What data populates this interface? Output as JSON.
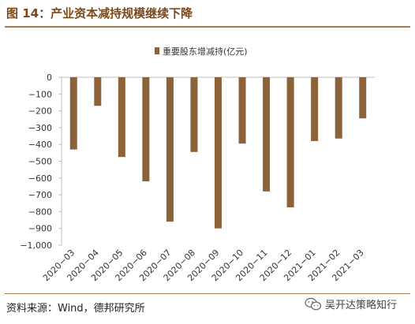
{
  "figure_title": "图 14：产业资本减持规模继续下降",
  "source_note": "资料来源：Wind，德邦研究所",
  "watermark": {
    "text": "吴开达策略知行",
    "icon": "wechat-icon"
  },
  "colors": {
    "bar": "#8c6239",
    "title": "#7a4a1c",
    "rule": "#a87e4c",
    "axis": "#bfbfbf",
    "text": "#333333"
  },
  "chart_data": {
    "type": "bar",
    "title": "",
    "xlabel": "",
    "ylabel": "",
    "ylim": [
      -1000,
      0
    ],
    "yticks": [
      0,
      -100,
      -200,
      -300,
      -400,
      -500,
      -600,
      -700,
      -800,
      -900,
      -1000
    ],
    "ytick_labels": [
      "0",
      "−100",
      "−200",
      "−300",
      "−400",
      "−500",
      "−600",
      "−700",
      "−800",
      "−900",
      "−1,000"
    ],
    "legend_position": "top-center",
    "categories": [
      "2020−03",
      "2020−04",
      "2020−05",
      "2020−06",
      "2020−07",
      "2020−08",
      "2020−09",
      "2020−10",
      "2020−11",
      "2020−12",
      "2021−01",
      "2021−02",
      "2021−03"
    ],
    "series": [
      {
        "name": "重要股东增减持(亿元)",
        "values": [
          -430,
          -170,
          -475,
          -620,
          -860,
          -445,
          -900,
          -395,
          -680,
          -775,
          -380,
          -365,
          -245
        ]
      }
    ]
  }
}
